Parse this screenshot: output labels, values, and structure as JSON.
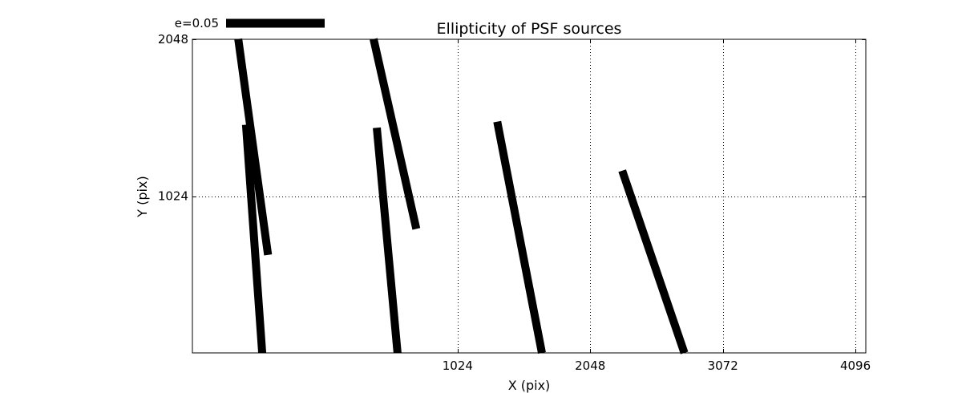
{
  "chart_data": {
    "type": "vector_field",
    "title": "Ellipticity of PSF sources",
    "xlabel": "X (pix)",
    "ylabel": "Y (pix)",
    "xlim": [
      -1024,
      4176
    ],
    "ylim": [
      0,
      2048
    ],
    "xticks": [
      1024,
      2048,
      3072,
      4096
    ],
    "xtick_labels": [
      "1024",
      "2048",
      "3072",
      "4096"
    ],
    "yticks": [
      2048,
      1024
    ],
    "ytick_labels": [
      "2048",
      "1024"
    ],
    "grid": true,
    "legend": {
      "label": "e=0.05",
      "position": "top-left, above axes",
      "length_e": 0.05
    },
    "line_color": "#000000",
    "segments": [
      {
        "x1": -670,
        "y1": 2050,
        "x2": -440,
        "y2": 640
      },
      {
        "x1": 375,
        "y1": 2050,
        "x2": 705,
        "y2": 810
      },
      {
        "x1": -610,
        "y1": 1490,
        "x2": -485,
        "y2": 0
      },
      {
        "x1": 400,
        "y1": 1470,
        "x2": 560,
        "y2": 0
      },
      {
        "x1": 1330,
        "y1": 1510,
        "x2": 1675,
        "y2": 0
      },
      {
        "x1": 2295,
        "y1": 1190,
        "x2": 2775,
        "y2": 0
      }
    ]
  }
}
